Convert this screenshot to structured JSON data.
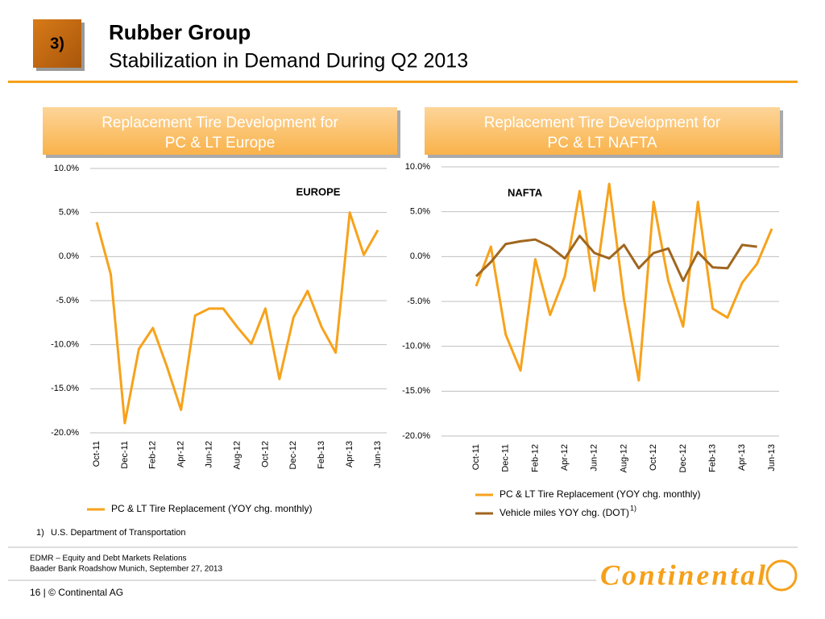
{
  "header": {
    "number": "3)",
    "title": "Rubber Group",
    "subtitle": "Stabilization in Demand During Q2 2013"
  },
  "chart_data": [
    {
      "type": "line",
      "title_lines": [
        "Replacement Tire Development for",
        "PC & LT Europe"
      ],
      "annotation": "EUROPE",
      "categories": [
        "Oct-11",
        null,
        "Dec-11",
        null,
        "Feb-12",
        null,
        "Apr-12",
        null,
        "Jun-12",
        null,
        "Aug-12",
        null,
        "Oct-12",
        null,
        "Dec-12",
        null,
        "Feb-13",
        null,
        "Apr-13",
        null,
        "Jun-13"
      ],
      "series": [
        {
          "name": "PC & LT Tire Replacement (YOY chg. monthly)",
          "color": "#f7a21b",
          "values": [
            3.9,
            -2.0,
            -18.9,
            -10.5,
            -8.1,
            -12.5,
            -17.4,
            -6.7,
            -5.9,
            -5.9,
            -8.0,
            -9.9,
            -5.9,
            -13.9,
            -6.9,
            -3.9,
            -8.0,
            -10.9,
            5.0,
            0.2,
            3.0
          ]
        }
      ],
      "ylim": [
        -20,
        10
      ],
      "yticks": [
        {
          "value": -20,
          "label": "-20.0%"
        },
        {
          "value": -15,
          "label": "-15.0%"
        },
        {
          "value": -10,
          "label": "-10.0%"
        },
        {
          "value": -5,
          "label": "-5.0%"
        },
        {
          "value": 0,
          "label": "0.0%"
        },
        {
          "value": 5,
          "label": "5.0%"
        },
        {
          "value": 10,
          "label": "10.0%"
        }
      ],
      "grid": true
    },
    {
      "type": "line",
      "title_lines": [
        "Replacement Tire Development for",
        "PC & LT NAFTA"
      ],
      "annotation": "NAFTA",
      "categories": [
        "Oct-11",
        null,
        "Dec-11",
        null,
        "Feb-12",
        null,
        "Apr-12",
        null,
        "Jun-12",
        null,
        "Aug-12",
        null,
        "Oct-12",
        null,
        "Dec-12",
        null,
        "Feb-13",
        null,
        "Apr-13",
        null,
        "Jun-13"
      ],
      "series": [
        {
          "name": "PC & LT Tire Replacement (YOY chg. monthly)",
          "color": "#f7a21b",
          "values": [
            -3.3,
            1.1,
            -8.7,
            -12.7,
            -0.3,
            -6.5,
            -2.2,
            7.3,
            -3.8,
            8.1,
            -4.8,
            -13.8,
            6.1,
            -2.7,
            -7.8,
            6.1,
            -5.8,
            -6.8,
            -2.9,
            -0.8,
            3.1
          ]
        },
        {
          "name": "Vehicle miles YOY chg. (DOT)",
          "color": "#a0661e",
          "values": [
            -2.2,
            -0.6,
            1.4,
            1.7,
            1.9,
            1.1,
            -0.2,
            2.3,
            0.4,
            -0.2,
            1.3,
            -1.3,
            0.4,
            0.9,
            -2.7,
            0.5,
            -1.2,
            -1.3,
            1.3,
            1.1,
            null
          ]
        }
      ],
      "legend_note": "1)",
      "ylim": [
        -20,
        10
      ],
      "yticks": [
        {
          "value": -20,
          "label": "-20.0%"
        },
        {
          "value": -15,
          "label": "-15.0%"
        },
        {
          "value": -10,
          "label": "-10.0%"
        },
        {
          "value": -5,
          "label": "-5.0%"
        },
        {
          "value": 0,
          "label": "0.0%"
        },
        {
          "value": 5,
          "label": "5.0%"
        },
        {
          "value": 10,
          "label": "10.0%"
        }
      ],
      "grid": true
    }
  ],
  "footnote": {
    "marker": "1)",
    "text": "U.S. Department of Transportation"
  },
  "footer": {
    "line1": "EDMR – Equity and Debt Markets Relations",
    "line2": "Baader Bank Roadshow Munich, September 27, 2013",
    "page": "16 | © Continental AG",
    "logo": "Continental"
  }
}
